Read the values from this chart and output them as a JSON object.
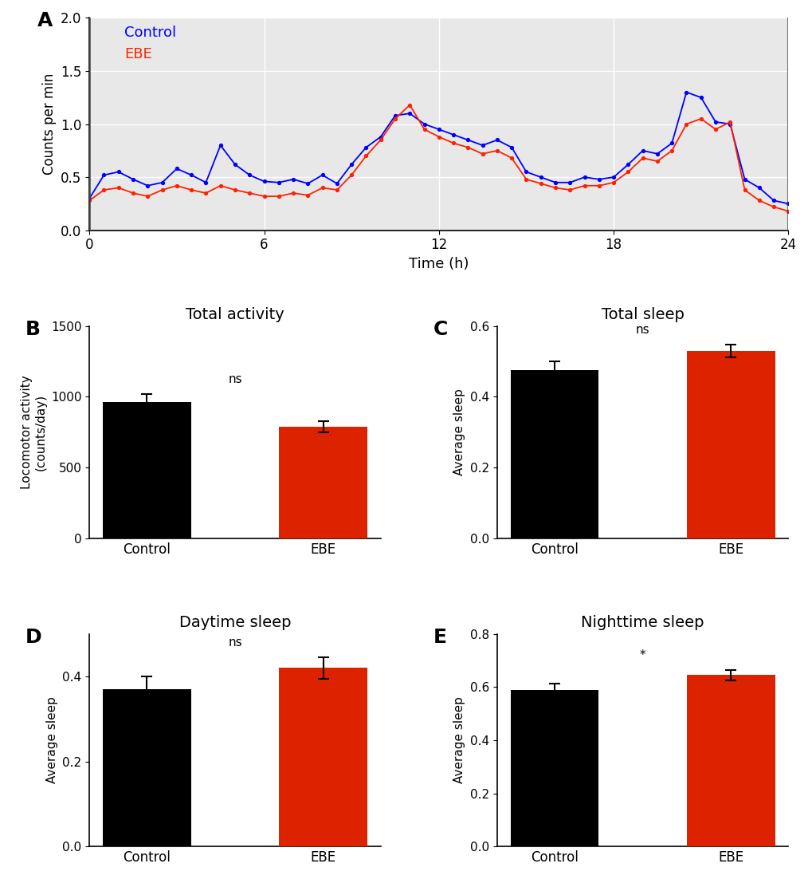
{
  "panel_A_label": "A",
  "panel_B_label": "B",
  "panel_C_label": "C",
  "panel_D_label": "D",
  "panel_E_label": "E",
  "line_time": [
    0,
    0.5,
    1,
    1.5,
    2,
    2.5,
    3,
    3.5,
    4,
    4.5,
    5,
    5.5,
    6,
    6.5,
    7,
    7.5,
    8,
    8.5,
    9,
    9.5,
    10,
    10.5,
    11,
    11.5,
    12,
    12.5,
    13,
    13.5,
    14,
    14.5,
    15,
    15.5,
    16,
    16.5,
    17,
    17.5,
    18,
    18.5,
    19,
    19.5,
    20,
    20.5,
    21,
    21.5,
    22,
    22.5,
    23,
    23.5,
    24
  ],
  "control_values": [
    0.3,
    0.52,
    0.55,
    0.48,
    0.42,
    0.45,
    0.58,
    0.52,
    0.45,
    0.8,
    0.62,
    0.52,
    0.46,
    0.45,
    0.48,
    0.44,
    0.52,
    0.44,
    0.62,
    0.78,
    0.88,
    1.08,
    1.1,
    1.0,
    0.95,
    0.9,
    0.85,
    0.8,
    0.85,
    0.78,
    0.55,
    0.5,
    0.45,
    0.45,
    0.5,
    0.48,
    0.5,
    0.62,
    0.75,
    0.72,
    0.82,
    1.3,
    1.25,
    1.02,
    1.0,
    0.48,
    0.4,
    0.28,
    0.25
  ],
  "ebe_values": [
    0.28,
    0.38,
    0.4,
    0.35,
    0.32,
    0.38,
    0.42,
    0.38,
    0.35,
    0.42,
    0.38,
    0.35,
    0.32,
    0.32,
    0.35,
    0.33,
    0.4,
    0.38,
    0.52,
    0.7,
    0.85,
    1.05,
    1.18,
    0.95,
    0.88,
    0.82,
    0.78,
    0.72,
    0.75,
    0.68,
    0.48,
    0.44,
    0.4,
    0.38,
    0.42,
    0.42,
    0.45,
    0.55,
    0.68,
    0.65,
    0.75,
    1.0,
    1.05,
    0.95,
    1.02,
    0.38,
    0.28,
    0.22,
    0.18
  ],
  "control_color": "#0000ff",
  "ebe_color": "#ff2200",
  "xlabel_A": "Time (h)",
  "ylabel_A": "Counts per min",
  "xlim_A": [
    0,
    24
  ],
  "ylim_A": [
    0,
    2
  ],
  "xticks_A": [
    0,
    6,
    12,
    18,
    24
  ],
  "yticks_A": [
    0,
    0.5,
    1.0,
    1.5,
    2.0
  ],
  "vlines_A": [
    0,
    24
  ],
  "bg_color_A": "#e8e8e8",
  "grid_color_A": "#ffffff",
  "title_B": "Total activity",
  "ylabel_B": "Locomotor activity\n(counts/day)",
  "categories_B": [
    "Control",
    "EBE"
  ],
  "values_B": [
    960,
    790
  ],
  "errors_B": [
    60,
    40
  ],
  "colors_B": [
    "#000000",
    "#dd2200"
  ],
  "ylim_B": [
    0,
    1500
  ],
  "yticks_B": [
    0,
    500,
    1000,
    1500
  ],
  "sig_B": "ns",
  "title_C": "Total sleep",
  "ylabel_C": "Average sleep",
  "categories_C": [
    "Control",
    "EBE"
  ],
  "values_C": [
    0.475,
    0.53
  ],
  "errors_C": [
    0.025,
    0.018
  ],
  "colors_C": [
    "#000000",
    "#dd2200"
  ],
  "ylim_C": [
    0,
    0.6
  ],
  "yticks_C": [
    0.0,
    0.2,
    0.4,
    0.6
  ],
  "sig_C": "ns",
  "title_D": "Daytime sleep",
  "ylabel_D": "Average sleep",
  "categories_D": [
    "Control",
    "EBE"
  ],
  "values_D": [
    0.37,
    0.42
  ],
  "errors_D": [
    0.03,
    0.025
  ],
  "colors_D": [
    "#000000",
    "#dd2200"
  ],
  "ylim_D": [
    0,
    0.5
  ],
  "yticks_D": [
    0.0,
    0.2,
    0.4
  ],
  "sig_D": "ns",
  "title_E": "Nighttime sleep",
  "ylabel_E": "Average sleep",
  "categories_E": [
    "Control",
    "EBE"
  ],
  "values_E": [
    0.59,
    0.645
  ],
  "errors_E": [
    0.022,
    0.02
  ],
  "colors_E": [
    "#000000",
    "#dd2200"
  ],
  "ylim_E": [
    0,
    0.8
  ],
  "yticks_E": [
    0.0,
    0.2,
    0.4,
    0.6,
    0.8
  ],
  "sig_E": "*"
}
